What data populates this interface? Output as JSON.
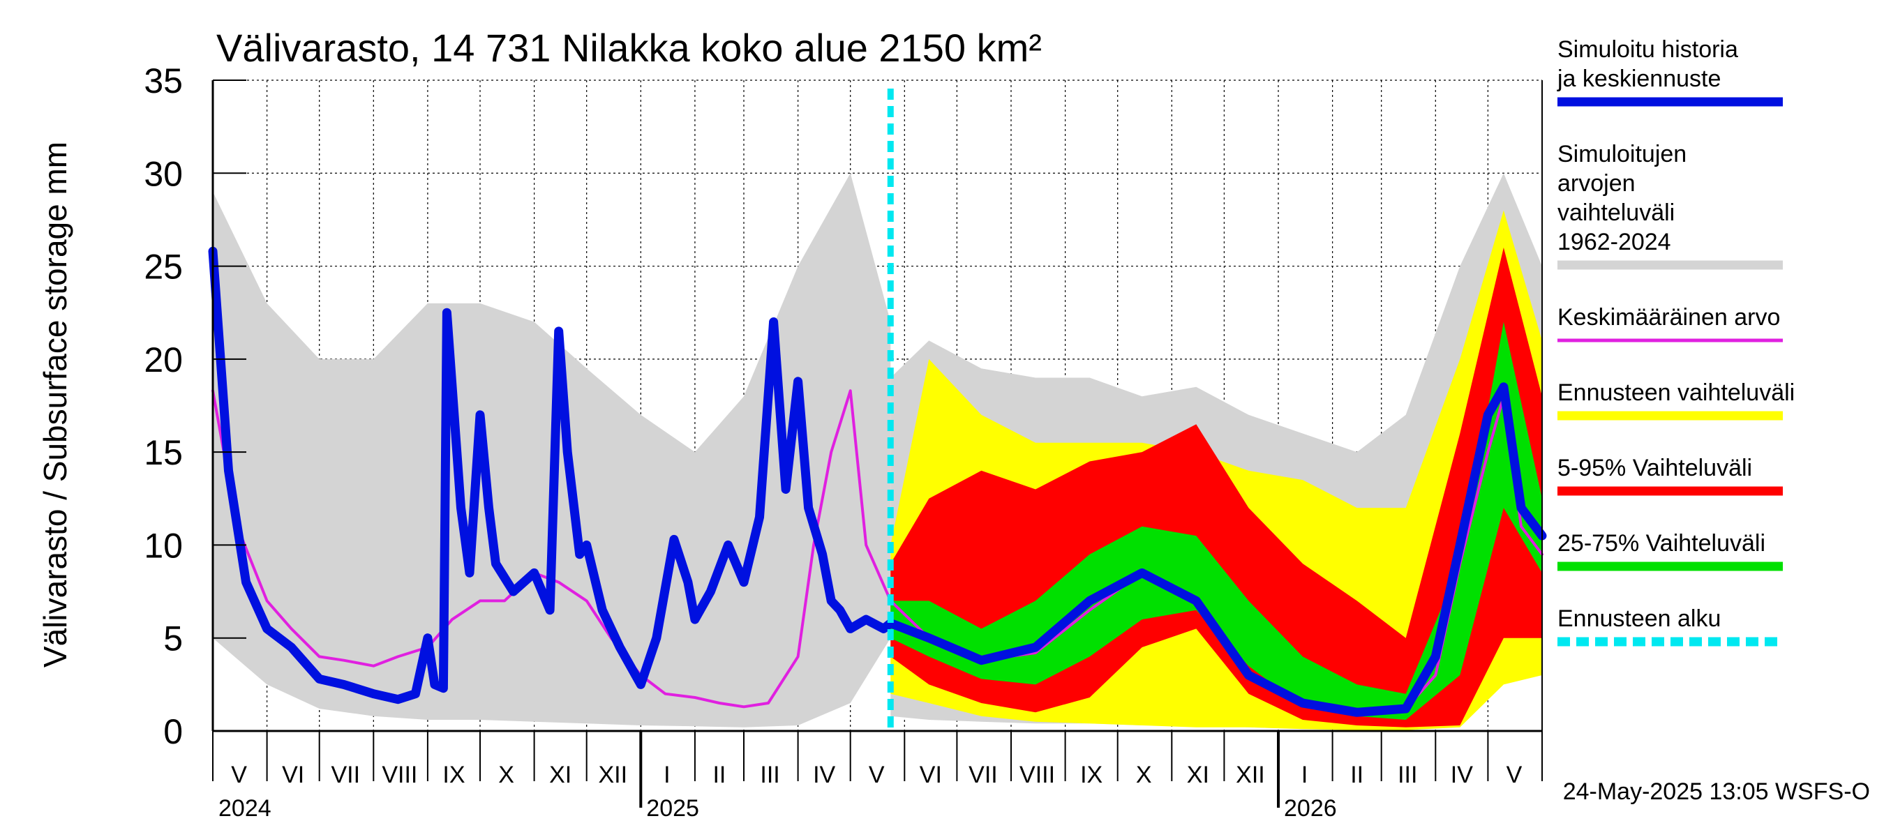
{
  "chart_data": {
    "type": "area",
    "title": "Välivarasto, 14 731 Nilakka koko alue 2150 km²",
    "ylabel": "Välivarasto / Subsurface storage  mm",
    "ylim": [
      0,
      35
    ],
    "yticks": [
      0,
      5,
      10,
      15,
      20,
      25,
      30,
      35
    ],
    "xlim": [
      "2024-05-01",
      "2026-06-01"
    ],
    "grid": true,
    "legend_position": "right",
    "forecast_start": "2025-05-24",
    "footer": "24-May-2025 13:05 WSFS-O",
    "month_labels": [
      {
        "label": "V",
        "date": "2024-05-16"
      },
      {
        "label": "VI",
        "date": "2024-06-16"
      },
      {
        "label": "VII",
        "date": "2024-07-16"
      },
      {
        "label": "VIII",
        "date": "2024-08-16"
      },
      {
        "label": "IX",
        "date": "2024-09-16"
      },
      {
        "label": "X",
        "date": "2024-10-16"
      },
      {
        "label": "XI",
        "date": "2024-11-16"
      },
      {
        "label": "XII",
        "date": "2024-12-16"
      },
      {
        "label": "I",
        "date": "2025-01-16"
      },
      {
        "label": "II",
        "date": "2025-02-15"
      },
      {
        "label": "III",
        "date": "2025-03-16"
      },
      {
        "label": "IV",
        "date": "2025-04-16"
      },
      {
        "label": "V",
        "date": "2025-05-16"
      },
      {
        "label": "VI",
        "date": "2025-06-16"
      },
      {
        "label": "VII",
        "date": "2025-07-16"
      },
      {
        "label": "VIII",
        "date": "2025-08-16"
      },
      {
        "label": "IX",
        "date": "2025-09-16"
      },
      {
        "label": "X",
        "date": "2025-10-16"
      },
      {
        "label": "XI",
        "date": "2025-11-16"
      },
      {
        "label": "XII",
        "date": "2025-12-16"
      },
      {
        "label": "I",
        "date": "2026-01-16"
      },
      {
        "label": "II",
        "date": "2026-02-15"
      },
      {
        "label": "III",
        "date": "2026-03-16"
      },
      {
        "label": "IV",
        "date": "2026-04-16"
      },
      {
        "label": "V",
        "date": "2026-05-16"
      }
    ],
    "year_labels": [
      {
        "label": "2024",
        "date": "2024-05-01"
      },
      {
        "label": "2025",
        "date": "2025-01-01"
      },
      {
        "label": "2026",
        "date": "2026-01-01"
      }
    ],
    "legend": [
      {
        "label": "Simuloitu historia ja keskiennuste",
        "color": "#0010e0",
        "style": "thick"
      },
      {
        "label": "Simuloitujen arvojen vaihteluväli 1962-2024",
        "color": "#d4d4d4",
        "style": "thick"
      },
      {
        "label": "Keskimääräinen arvo",
        "color": "#e020e0",
        "style": "thin"
      },
      {
        "label": "Ennusteen vaihteluväli",
        "color": "#ffff00",
        "style": "thick"
      },
      {
        "label": "5-95% Vaihteluväli",
        "color": "#ff0000",
        "style": "thick"
      },
      {
        "label": "25-75% Vaihteluväli",
        "color": "#00e000",
        "style": "thick"
      },
      {
        "label": "Ennusteen alku",
        "color": "#00e8f0",
        "style": "dashed"
      }
    ],
    "series": [
      {
        "name": "Simuloitujen arvojen vaihteluväli 1962-2024",
        "color": "#d4d4d4",
        "x": [
          "2024-05-01",
          "2024-06-01",
          "2024-07-01",
          "2024-08-01",
          "2024-09-01",
          "2024-10-01",
          "2024-11-01",
          "2024-12-01",
          "2025-01-01",
          "2025-02-01",
          "2025-03-01",
          "2025-04-01",
          "2025-05-01",
          "2025-05-24"
        ],
        "low": [
          5.0,
          2.5,
          1.2,
          0.8,
          0.6,
          0.6,
          0.5,
          0.4,
          0.3,
          0.25,
          0.2,
          0.3,
          1.5,
          5.0
        ],
        "high": [
          29.0,
          23.0,
          20.0,
          20.0,
          23.0,
          23.0,
          22.0,
          19.5,
          17.0,
          15.0,
          18.0,
          25.0,
          30.0,
          22.0
        ]
      },
      {
        "name": "Simuloitujen arvojen vaihteluväli 1962-2024 (ennuste)",
        "color": "#d4d4d4",
        "x": [
          "2025-05-24",
          "2025-06-15",
          "2025-07-15",
          "2025-08-15",
          "2025-09-15",
          "2025-10-15",
          "2025-11-15",
          "2025-12-15",
          "2026-01-15",
          "2026-02-15",
          "2026-03-15",
          "2026-04-15",
          "2026-05-10",
          "2026-06-01"
        ],
        "low": [
          0.8,
          0.6,
          0.5,
          0.4,
          0.4,
          0.3,
          0.3,
          0.2,
          0.1,
          0.05,
          0.05,
          0.2,
          3.0,
          3.5
        ],
        "high": [
          19.0,
          21.0,
          19.5,
          19.0,
          19.0,
          18.0,
          18.5,
          17.0,
          16.0,
          15.0,
          17.0,
          25.0,
          30.0,
          25.0
        ]
      },
      {
        "name": "Ennusteen vaihteluväli",
        "color": "#ffff00",
        "x": [
          "2025-05-24",
          "2025-06-15",
          "2025-07-15",
          "2025-08-15",
          "2025-09-15",
          "2025-10-15",
          "2025-11-15",
          "2025-12-15",
          "2026-01-15",
          "2026-02-15",
          "2026-03-15",
          "2026-04-15",
          "2026-05-10",
          "2026-06-01"
        ],
        "low": [
          2.0,
          1.5,
          0.8,
          0.5,
          0.4,
          0.3,
          0.2,
          0.2,
          0.1,
          0.05,
          0.05,
          0.2,
          2.5,
          3.0
        ],
        "high": [
          10.0,
          20.0,
          17.0,
          15.5,
          15.5,
          15.5,
          15.0,
          14.0,
          13.5,
          12.0,
          12.0,
          20.0,
          28.0,
          21.0
        ]
      },
      {
        "name": "5-95% Vaihteluväli",
        "color": "#ff0000",
        "x": [
          "2025-05-24",
          "2025-06-15",
          "2025-07-15",
          "2025-08-15",
          "2025-09-15",
          "2025-10-15",
          "2025-11-15",
          "2025-12-15",
          "2026-01-15",
          "2026-02-15",
          "2026-03-15",
          "2026-04-15",
          "2026-05-10",
          "2026-06-01"
        ],
        "low": [
          4.0,
          2.5,
          1.5,
          1.0,
          1.8,
          4.5,
          5.5,
          2.0,
          0.6,
          0.3,
          0.2,
          0.3,
          5.0,
          5.0
        ],
        "high": [
          9.0,
          12.5,
          14.0,
          13.0,
          14.5,
          15.0,
          16.5,
          12.0,
          9.0,
          7.0,
          5.0,
          16.0,
          26.0,
          18.0
        ]
      },
      {
        "name": "25-75% Vaihteluväli",
        "color": "#00e000",
        "x": [
          "2025-05-24",
          "2025-06-15",
          "2025-07-15",
          "2025-08-15",
          "2025-09-15",
          "2025-10-15",
          "2025-11-15",
          "2025-12-15",
          "2026-01-15",
          "2026-02-15",
          "2026-03-15",
          "2026-04-15",
          "2026-05-10",
          "2026-06-01"
        ],
        "low": [
          5.0,
          4.0,
          2.8,
          2.5,
          4.0,
          6.0,
          6.5,
          3.5,
          1.3,
          0.8,
          0.6,
          3.0,
          12.0,
          8.5
        ],
        "high": [
          7.0,
          7.0,
          5.5,
          7.0,
          9.5,
          11.0,
          10.5,
          7.0,
          4.0,
          2.5,
          2.0,
          9.0,
          22.0,
          12.5
        ]
      },
      {
        "name": "Simuloitu historia ja keskiennuste",
        "color": "#0010e0",
        "x": [
          "2024-05-01",
          "2024-05-10",
          "2024-05-20",
          "2024-06-01",
          "2024-06-15",
          "2024-07-01",
          "2024-07-15",
          "2024-08-01",
          "2024-08-15",
          "2024-08-25",
          "2024-09-01",
          "2024-09-05",
          "2024-09-10",
          "2024-09-12",
          "2024-09-20",
          "2024-09-25",
          "2024-10-01",
          "2024-10-06",
          "2024-10-10",
          "2024-10-20",
          "2024-11-01",
          "2024-11-10",
          "2024-11-15",
          "2024-11-20",
          "2024-11-27",
          "2024-12-01",
          "2024-12-10",
          "2024-12-20",
          "2025-01-01",
          "2025-01-10",
          "2025-01-20",
          "2025-01-28",
          "2025-02-01",
          "2025-02-10",
          "2025-02-20",
          "2025-03-01",
          "2025-03-10",
          "2025-03-18",
          "2025-03-25",
          "2025-04-01",
          "2025-04-07",
          "2025-04-15",
          "2025-04-20",
          "2025-04-25",
          "2025-05-01",
          "2025-05-10",
          "2025-05-20",
          "2025-05-24",
          "2025-06-15",
          "2025-07-15",
          "2025-08-15",
          "2025-09-15",
          "2025-10-15",
          "2025-11-15",
          "2025-12-15",
          "2026-01-15",
          "2026-02-15",
          "2026-03-15",
          "2026-04-01",
          "2026-04-15",
          "2026-05-01",
          "2026-05-10",
          "2026-05-20",
          "2026-06-01"
        ],
        "values": [
          25.8,
          14.0,
          8.0,
          5.5,
          4.5,
          2.8,
          2.5,
          2.0,
          1.7,
          2.0,
          5.0,
          2.5,
          2.3,
          22.5,
          12.0,
          8.5,
          17.0,
          12.0,
          9.0,
          7.5,
          8.5,
          6.5,
          21.5,
          15.0,
          9.5,
          10.0,
          6.5,
          4.5,
          2.5,
          5.0,
          10.3,
          8.0,
          6.0,
          7.5,
          10.0,
          8.0,
          11.5,
          22.0,
          13.0,
          18.8,
          12.0,
          9.5,
          7.0,
          6.5,
          5.5,
          6.0,
          5.5,
          5.8,
          5.0,
          3.8,
          4.5,
          7.0,
          8.5,
          7.0,
          3.0,
          1.5,
          1.0,
          1.2,
          4.0,
          10.0,
          17.0,
          18.5,
          12.0,
          10.5
        ]
      },
      {
        "name": "Keskimääräinen arvo",
        "color": "#e020e0",
        "x": [
          "2024-05-01",
          "2024-05-15",
          "2024-06-01",
          "2024-06-15",
          "2024-07-01",
          "2024-07-15",
          "2024-08-01",
          "2024-08-15",
          "2024-09-01",
          "2024-09-15",
          "2024-10-01",
          "2024-10-15",
          "2024-11-01",
          "2024-11-15",
          "2024-12-01",
          "2024-12-15",
          "2025-01-01",
          "2025-01-15",
          "2025-02-01",
          "2025-02-15",
          "2025-03-01",
          "2025-03-15",
          "2025-04-01",
          "2025-04-10",
          "2025-04-20",
          "2025-05-01",
          "2025-05-10",
          "2025-05-24",
          "2025-06-15",
          "2025-07-15",
          "2025-08-15",
          "2025-09-15",
          "2025-10-15",
          "2025-11-15",
          "2025-12-15",
          "2026-01-15",
          "2026-02-15",
          "2026-03-15",
          "2026-04-01",
          "2026-04-15",
          "2026-05-01",
          "2026-05-10",
          "2026-05-20",
          "2026-06-01"
        ],
        "values": [
          18.3,
          11.0,
          7.0,
          5.5,
          4.0,
          3.8,
          3.5,
          4.0,
          4.5,
          6.0,
          7.0,
          7.0,
          8.5,
          8.0,
          7.0,
          5.0,
          3.0,
          2.0,
          1.8,
          1.5,
          1.3,
          1.5,
          4.0,
          10.0,
          15.0,
          18.3,
          10.0,
          7.0,
          5.0,
          3.8,
          4.2,
          6.5,
          8.5,
          7.0,
          3.0,
          1.5,
          1.0,
          1.2,
          3.0,
          9.0,
          15.0,
          18.0,
          11.0,
          9.5
        ]
      }
    ]
  }
}
